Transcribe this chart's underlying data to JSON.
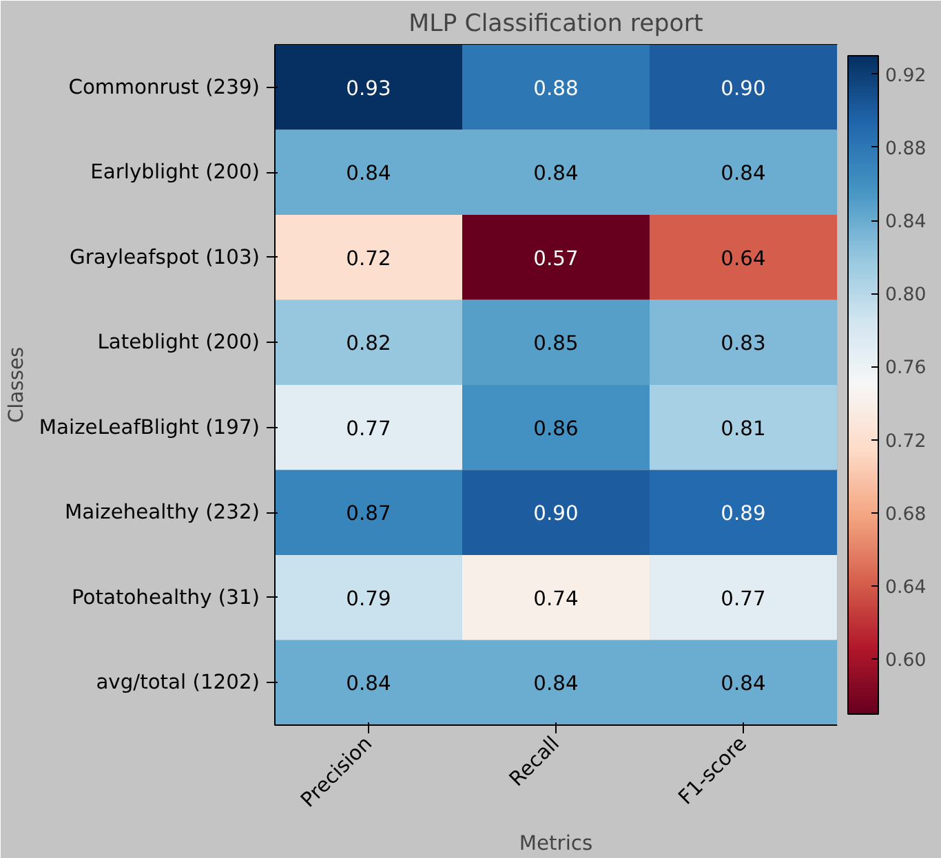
{
  "chart_data": {
    "type": "heatmap",
    "title": "MLP Classification report",
    "xlabel": "Metrics",
    "ylabel": "Classes",
    "categories": [
      "Precision",
      "Recall",
      "F1-score"
    ],
    "y_categories": [
      "Commonrust (239)",
      "Earlyblight (200)",
      "Grayleafspot (103)",
      "Lateblight (200)",
      "MaizeLeafBlight (197)",
      "Maizehealthy (232)",
      "Potatohealthy (31)",
      "avg/total (1202)"
    ],
    "cells": [
      [
        0.93,
        0.88,
        0.9
      ],
      [
        0.84,
        0.84,
        0.84
      ],
      [
        0.72,
        0.57,
        0.64
      ],
      [
        0.82,
        0.85,
        0.83
      ],
      [
        0.77,
        0.86,
        0.81
      ],
      [
        0.87,
        0.9,
        0.89
      ],
      [
        0.79,
        0.74,
        0.77
      ],
      [
        0.84,
        0.84,
        0.84
      ]
    ],
    "cell_labels": [
      [
        "0.93",
        "0.88",
        "0.90"
      ],
      [
        "0.84",
        "0.84",
        "0.84"
      ],
      [
        "0.72",
        "0.57",
        "0.64"
      ],
      [
        "0.82",
        "0.85",
        "0.83"
      ],
      [
        "0.77",
        "0.86",
        "0.81"
      ],
      [
        "0.87",
        "0.90",
        "0.89"
      ],
      [
        "0.79",
        "0.74",
        "0.77"
      ],
      [
        "0.84",
        "0.84",
        "0.84"
      ]
    ],
    "clim": [
      0.57,
      0.93
    ],
    "cticks": [
      {
        "value": 0.6,
        "label": "0.60"
      },
      {
        "value": 0.64,
        "label": "0.64"
      },
      {
        "value": 0.68,
        "label": "0.68"
      },
      {
        "value": 0.72,
        "label": "0.72"
      },
      {
        "value": 0.76,
        "label": "0.76"
      },
      {
        "value": 0.8,
        "label": "0.80"
      },
      {
        "value": 0.84,
        "label": "0.84"
      },
      {
        "value": 0.88,
        "label": "0.88"
      },
      {
        "value": 0.92,
        "label": "0.92"
      }
    ],
    "grid": false
  }
}
